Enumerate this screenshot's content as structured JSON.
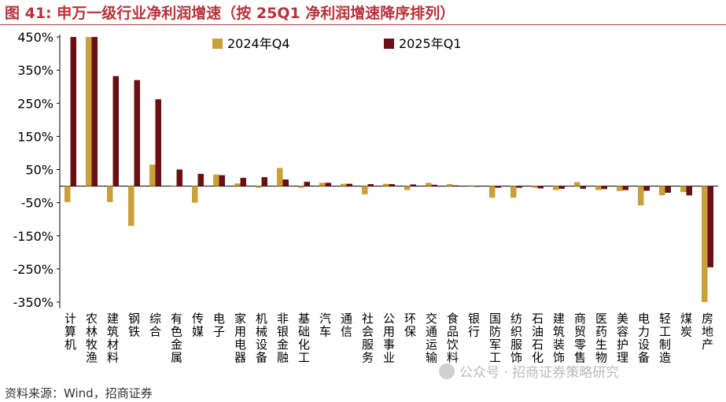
{
  "title": "图 41:  申万一级行业净利润增速（按 25Q1 净利润增速降序排列）",
  "source": "资料来源：Wind，招商证券",
  "watermark": "公众号 · 招商证券策略研究",
  "colors": {
    "title": "#b8323a",
    "q4": "#c9a03a",
    "q1": "#6b0f14"
  },
  "chart_data": {
    "type": "bar",
    "categories": [
      "计算机",
      "农林牧渔",
      "建筑材料",
      "钢铁",
      "综合",
      "有色金属",
      "传媒",
      "电子",
      "家用电器",
      "机械设备",
      "非银金融",
      "基础化工",
      "汽车",
      "通信",
      "社会服务",
      "公用事业",
      "环保",
      "交通运输",
      "食品饮料",
      "银行",
      "国防军工",
      "纺织服饰",
      "石油石化",
      "建筑装饰",
      "商贸零售",
      "医药生物",
      "美容护理",
      "电力设备",
      "轻工制造",
      "煤炭",
      "房地产"
    ],
    "series": [
      {
        "name": "2024年Q4",
        "values": [
          -48,
          452,
          -48,
          -120,
          65,
          -2,
          -50,
          35,
          8,
          -5,
          55,
          -5,
          10,
          7,
          -25,
          7,
          -12,
          10,
          6,
          2,
          -35,
          -35,
          -5,
          -12,
          12,
          -12,
          -15,
          -58,
          -28,
          -18,
          -350
        ]
      },
      {
        "name": "2025年Q1",
        "values": [
          450,
          452,
          332,
          320,
          262,
          50,
          37,
          33,
          25,
          27,
          20,
          13,
          10,
          7,
          6,
          6,
          5,
          4,
          2,
          0,
          -5,
          -5,
          -7,
          -8,
          -8,
          -9,
          -12,
          -14,
          -20,
          -28,
          -245
        ]
      }
    ],
    "yticks": [
      "450%",
      "350%",
      "250%",
      "150%",
      "50%",
      "-50%",
      "-150%",
      "-250%",
      "-350%"
    ],
    "ylim": [
      -350,
      450
    ],
    "legend": "top",
    "grid": false
  }
}
